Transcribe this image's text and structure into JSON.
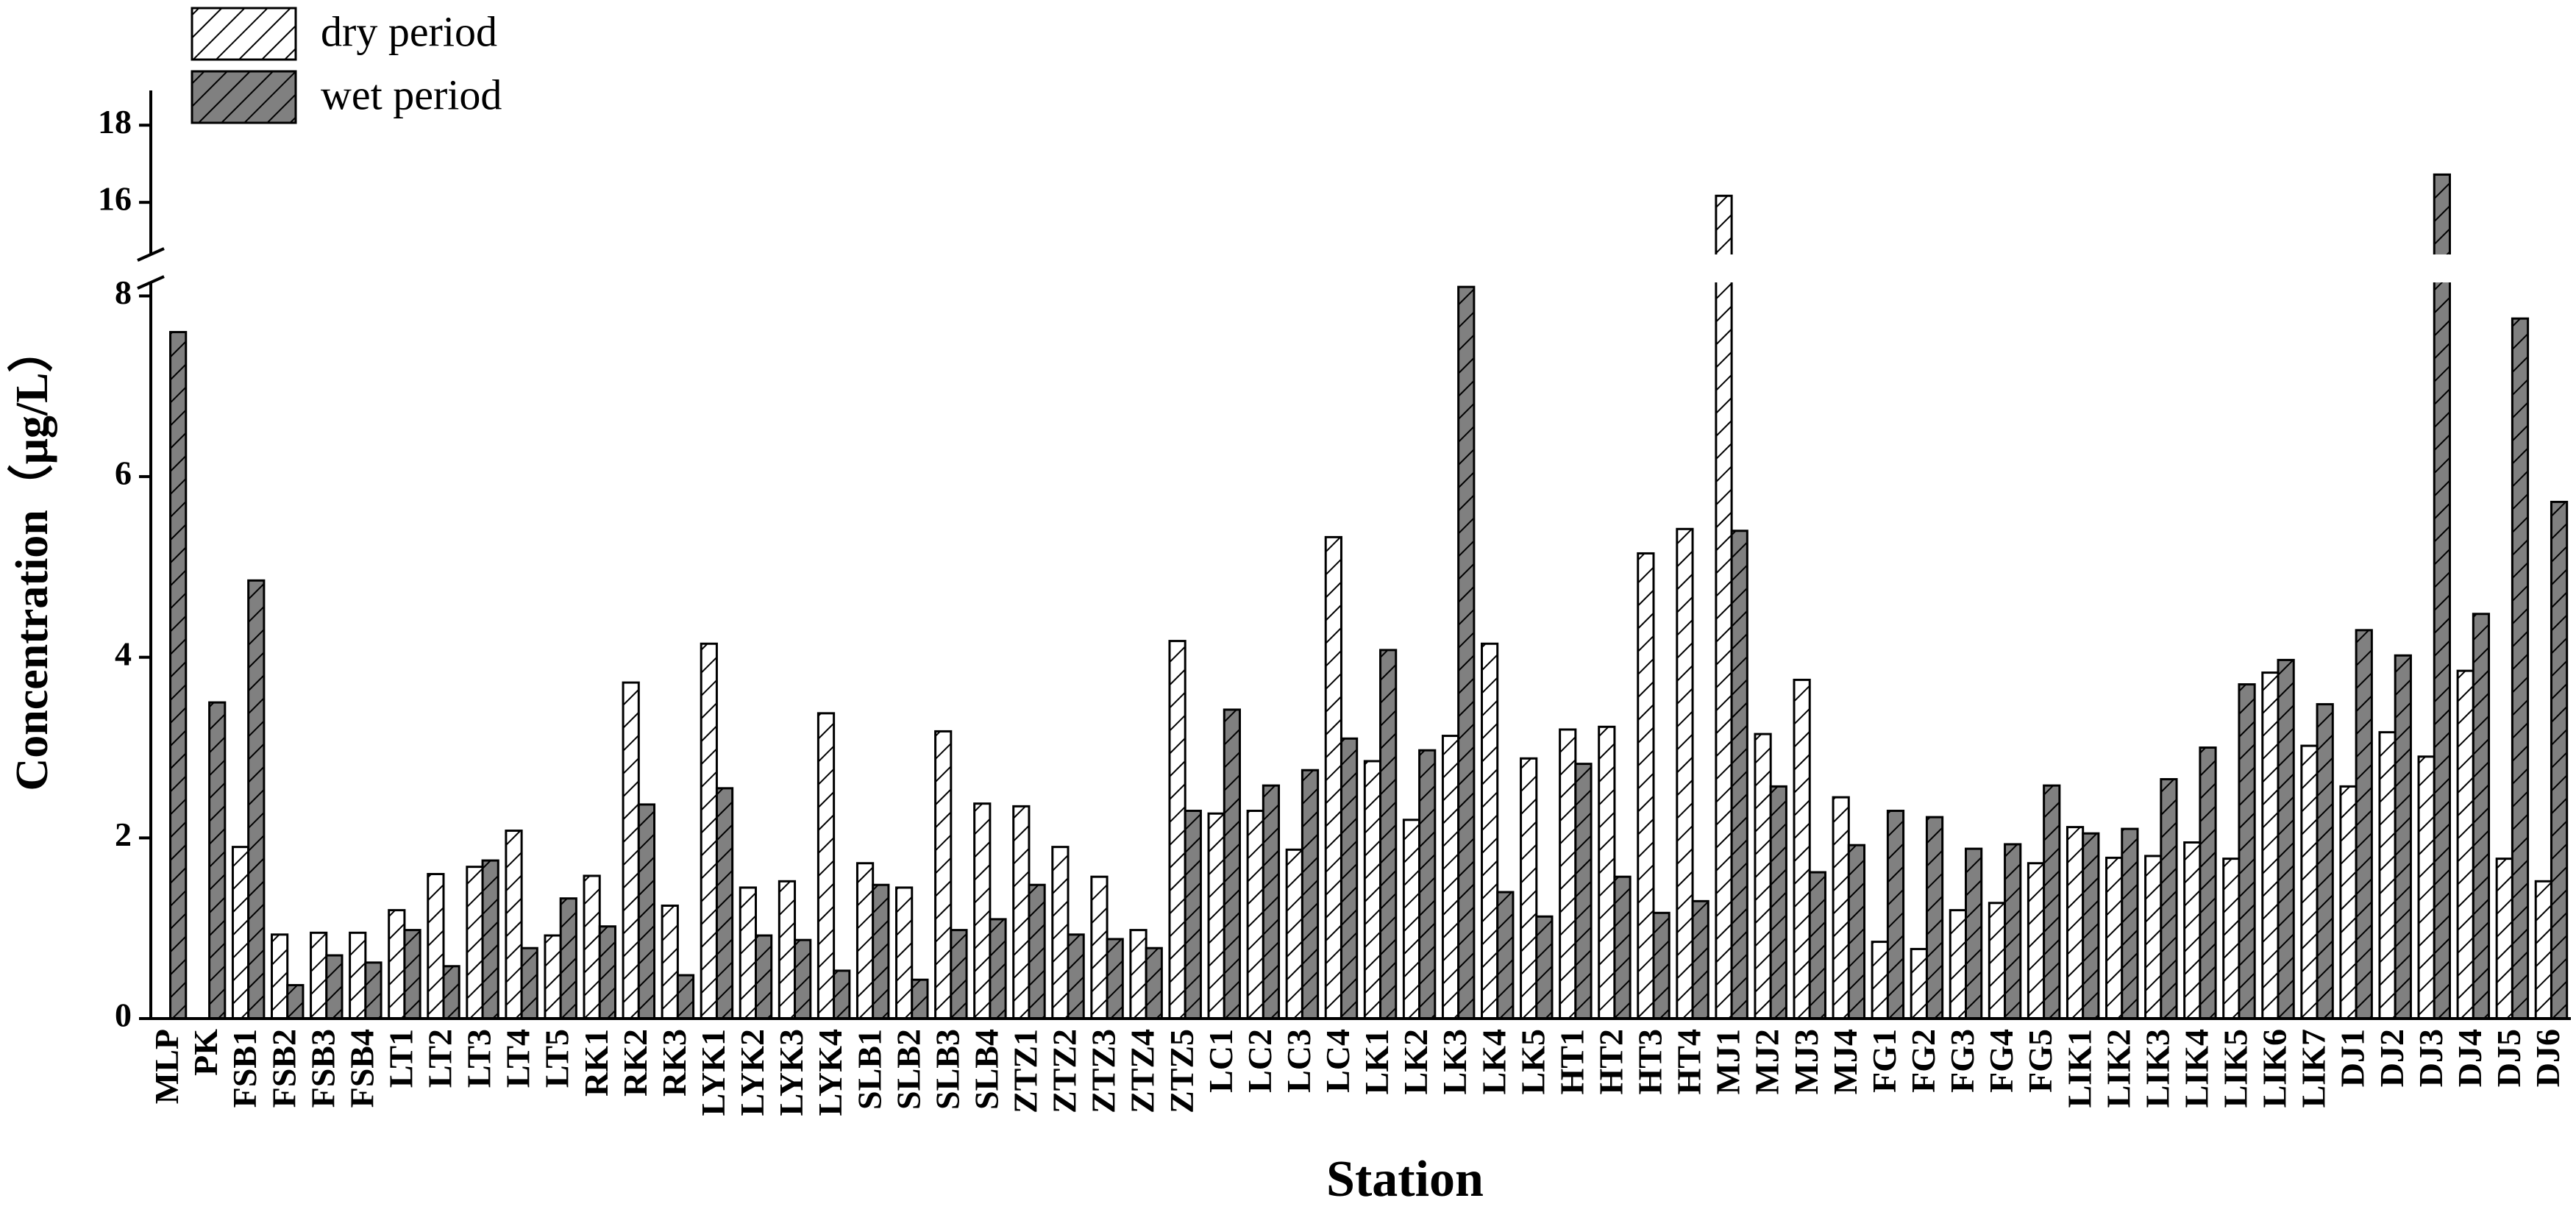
{
  "chart_data": {
    "type": "bar",
    "y_label": "Concentration（μg/L）",
    "x_label": "Station",
    "categories": [
      "MLP",
      "PK",
      "FSB1",
      "FSB2",
      "FSB3",
      "FSB4",
      "LT1",
      "LT2",
      "LT3",
      "LT4",
      "LT5",
      "RK1",
      "RK2",
      "RK3",
      "LYK1",
      "LYK2",
      "LYK3",
      "LYK4",
      "SLB1",
      "SLB2",
      "SLB3",
      "SLB4",
      "ZTZ1",
      "ZTZ2",
      "ZTZ3",
      "ZTZ4",
      "ZTZ5",
      "LC1",
      "LC2",
      "LC3",
      "LC4",
      "LK1",
      "LK2",
      "LK3",
      "LK4",
      "LK5",
      "HT1",
      "HT2",
      "HT3",
      "HT4",
      "MJ1",
      "MJ2",
      "MJ3",
      "MJ4",
      "FG1",
      "FG2",
      "FG3",
      "FG4",
      "FG5",
      "LIK1",
      "LIK2",
      "LIK3",
      "LIK4",
      "LIK5",
      "LIK6",
      "LIK7",
      "DJ1",
      "DJ2",
      "DJ3",
      "DJ4",
      "DJ5",
      "DJ6"
    ],
    "series": [
      {
        "name": "dry period",
        "color": "#ffffff",
        "hatch": true,
        "values": [
          null,
          null,
          1.9,
          0.93,
          0.95,
          0.95,
          1.2,
          1.6,
          1.68,
          2.08,
          0.92,
          1.58,
          3.72,
          1.25,
          4.15,
          1.45,
          1.52,
          3.38,
          1.72,
          1.45,
          3.18,
          2.38,
          2.35,
          1.9,
          1.57,
          0.98,
          4.18,
          2.27,
          2.3,
          1.87,
          5.33,
          2.85,
          2.2,
          3.13,
          4.15,
          2.88,
          3.2,
          3.23,
          5.15,
          5.42,
          16.17,
          3.15,
          3.75,
          2.45,
          0.85,
          0.77,
          1.2,
          1.28,
          1.72,
          2.12,
          1.78,
          1.8,
          1.95,
          1.77,
          3.83,
          3.02,
          2.57,
          3.17,
          2.9,
          3.85,
          1.77,
          1.52
        ]
      },
      {
        "name": "wet period",
        "color": "#808080",
        "hatch": true,
        "values": [
          7.6,
          3.5,
          4.85,
          0.37,
          0.7,
          0.62,
          0.98,
          0.58,
          1.75,
          0.78,
          1.33,
          1.02,
          2.37,
          0.48,
          2.55,
          0.92,
          0.87,
          0.53,
          1.48,
          0.43,
          0.98,
          1.1,
          1.48,
          0.93,
          0.88,
          0.78,
          2.3,
          3.42,
          2.58,
          2.75,
          3.1,
          4.08,
          2.97,
          8.1,
          1.4,
          1.13,
          2.82,
          1.57,
          1.17,
          1.3,
          5.4,
          2.57,
          1.62,
          1.92,
          2.3,
          2.23,
          1.88,
          1.93,
          2.58,
          2.05,
          2.1,
          2.65,
          3.0,
          3.7,
          3.97,
          3.48,
          4.3,
          4.02,
          16.72,
          4.48,
          7.75,
          5.72
        ]
      }
    ],
    "ylim": [
      0,
      18.9
    ],
    "y_break": [
      8.15,
      14.65
    ],
    "yticks": [
      0,
      2,
      4,
      6,
      8,
      16,
      18
    ],
    "legend": "upper-left"
  }
}
